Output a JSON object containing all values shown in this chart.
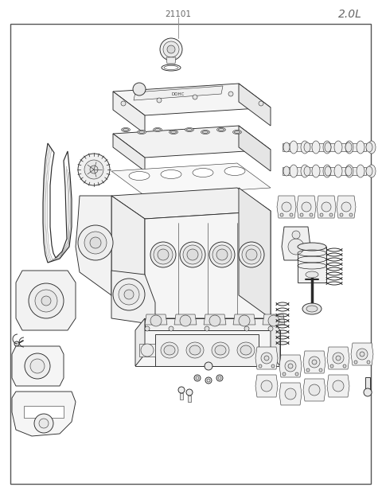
{
  "title_part_number": "21101",
  "title_engine": "2.0L",
  "background_color": "#ffffff",
  "border_color": "#333333",
  "line_color": "#2a2a2a",
  "label_color": "#666666",
  "fig_width": 4.8,
  "fig_height": 6.22,
  "dpi": 100,
  "lw_main": 0.65,
  "lw_thin": 0.4,
  "lw_thick": 1.0,
  "fc_white": "#ffffff",
  "fc_light": "#f8f8f8"
}
